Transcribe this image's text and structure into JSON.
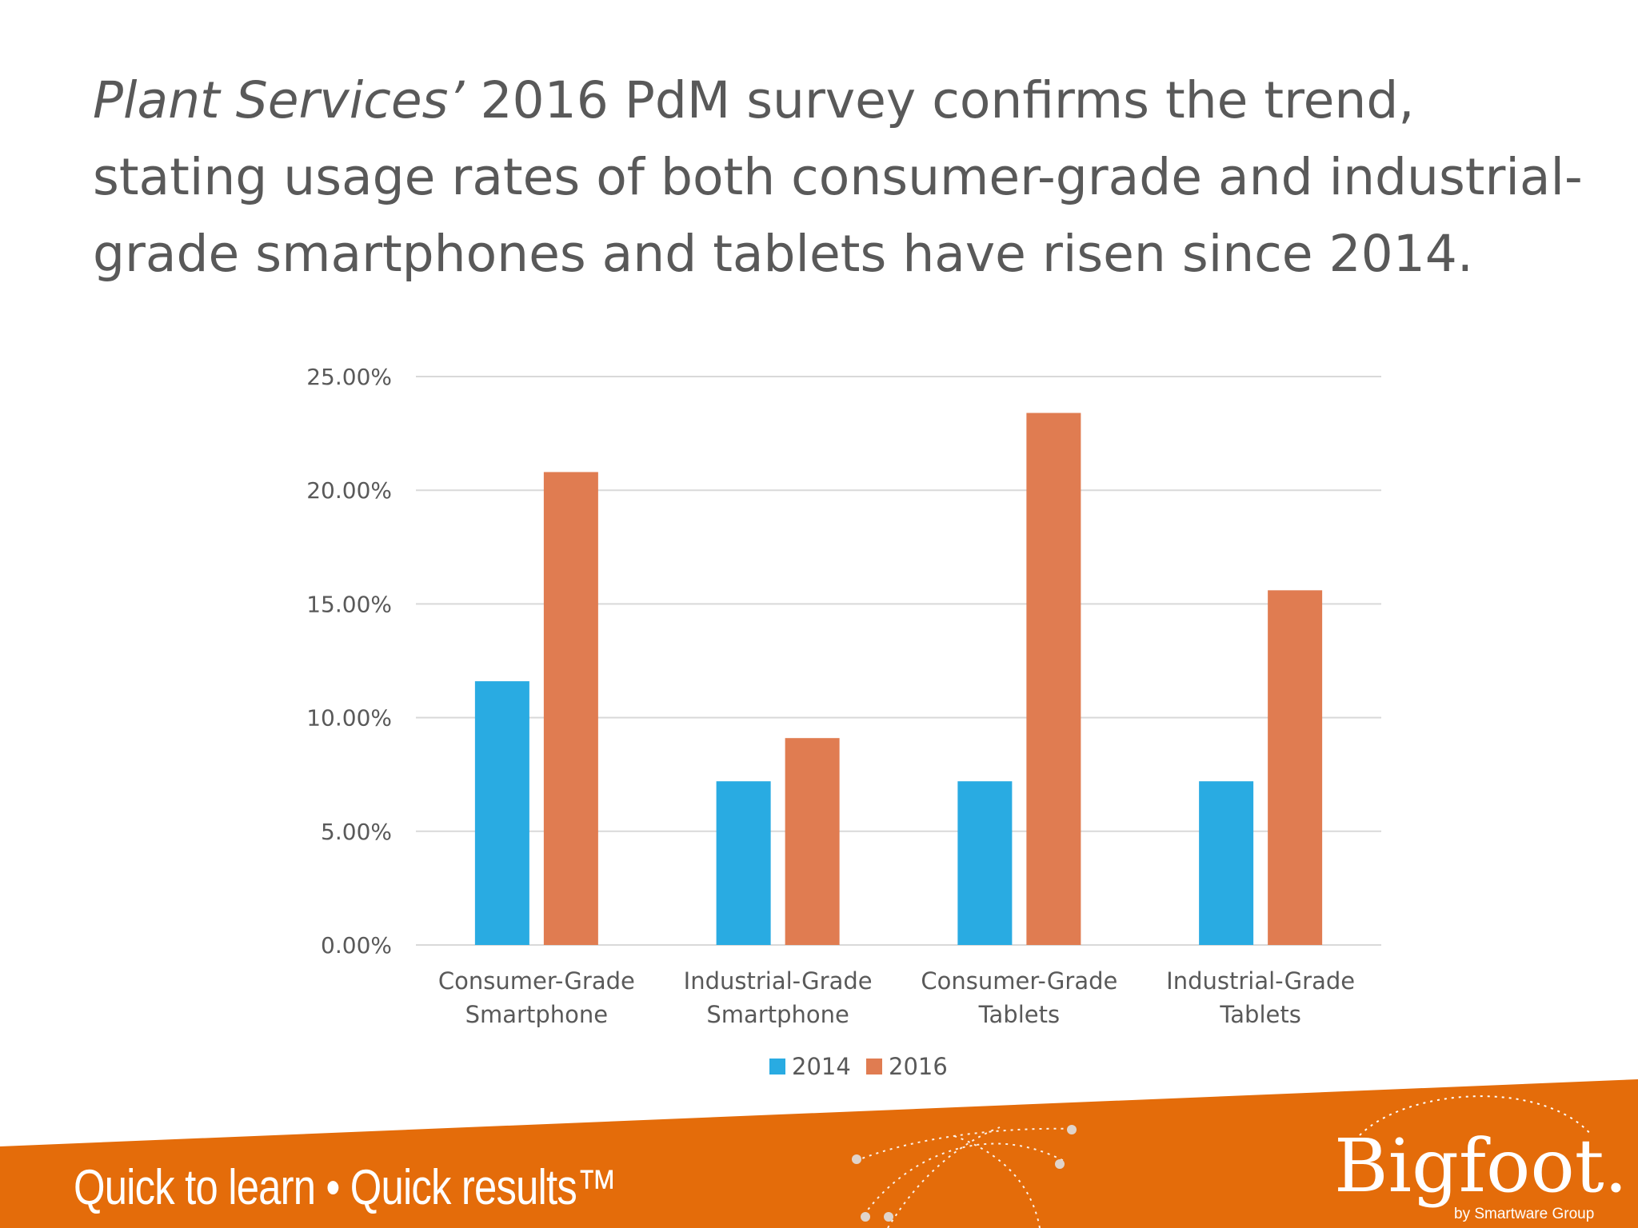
{
  "headline": {
    "italic": "Plant Services’",
    "rest": " 2016 PdM survey confirms the trend, stating usage rates of both consumer-grade and industrial-grade smartphones and tablets have risen since 2014."
  },
  "colors": {
    "series_2014": "#29ABE2",
    "series_2016": "#E07C51",
    "footer_orange": "#E46C0A",
    "grid": "#D9D9D9",
    "text": "#595959"
  },
  "chart_data": {
    "type": "bar",
    "categories": [
      [
        "Consumer-Grade",
        "Smartphone"
      ],
      [
        "Industrial-Grade",
        "Smartphone"
      ],
      [
        "Consumer-Grade",
        "Tablets"
      ],
      [
        "Industrial-Grade",
        "Tablets"
      ]
    ],
    "series": [
      {
        "name": "2014",
        "values": [
          11.6,
          7.2,
          7.2,
          7.2
        ]
      },
      {
        "name": "2016",
        "values": [
          20.8,
          9.1,
          23.4,
          15.6
        ]
      }
    ],
    "ylim": [
      0,
      25
    ],
    "yticks": [
      "0.00%",
      "5.00%",
      "10.00%",
      "15.00%",
      "20.00%",
      "25.00%"
    ],
    "grid": true,
    "legend": "bottom-center"
  },
  "footer": {
    "tagline": "Quick to learn • Quick results™",
    "brand": "Bigfoot.",
    "brand_sub": "by Smartware Group",
    "logo_icon": "orbit-dots-icon"
  }
}
